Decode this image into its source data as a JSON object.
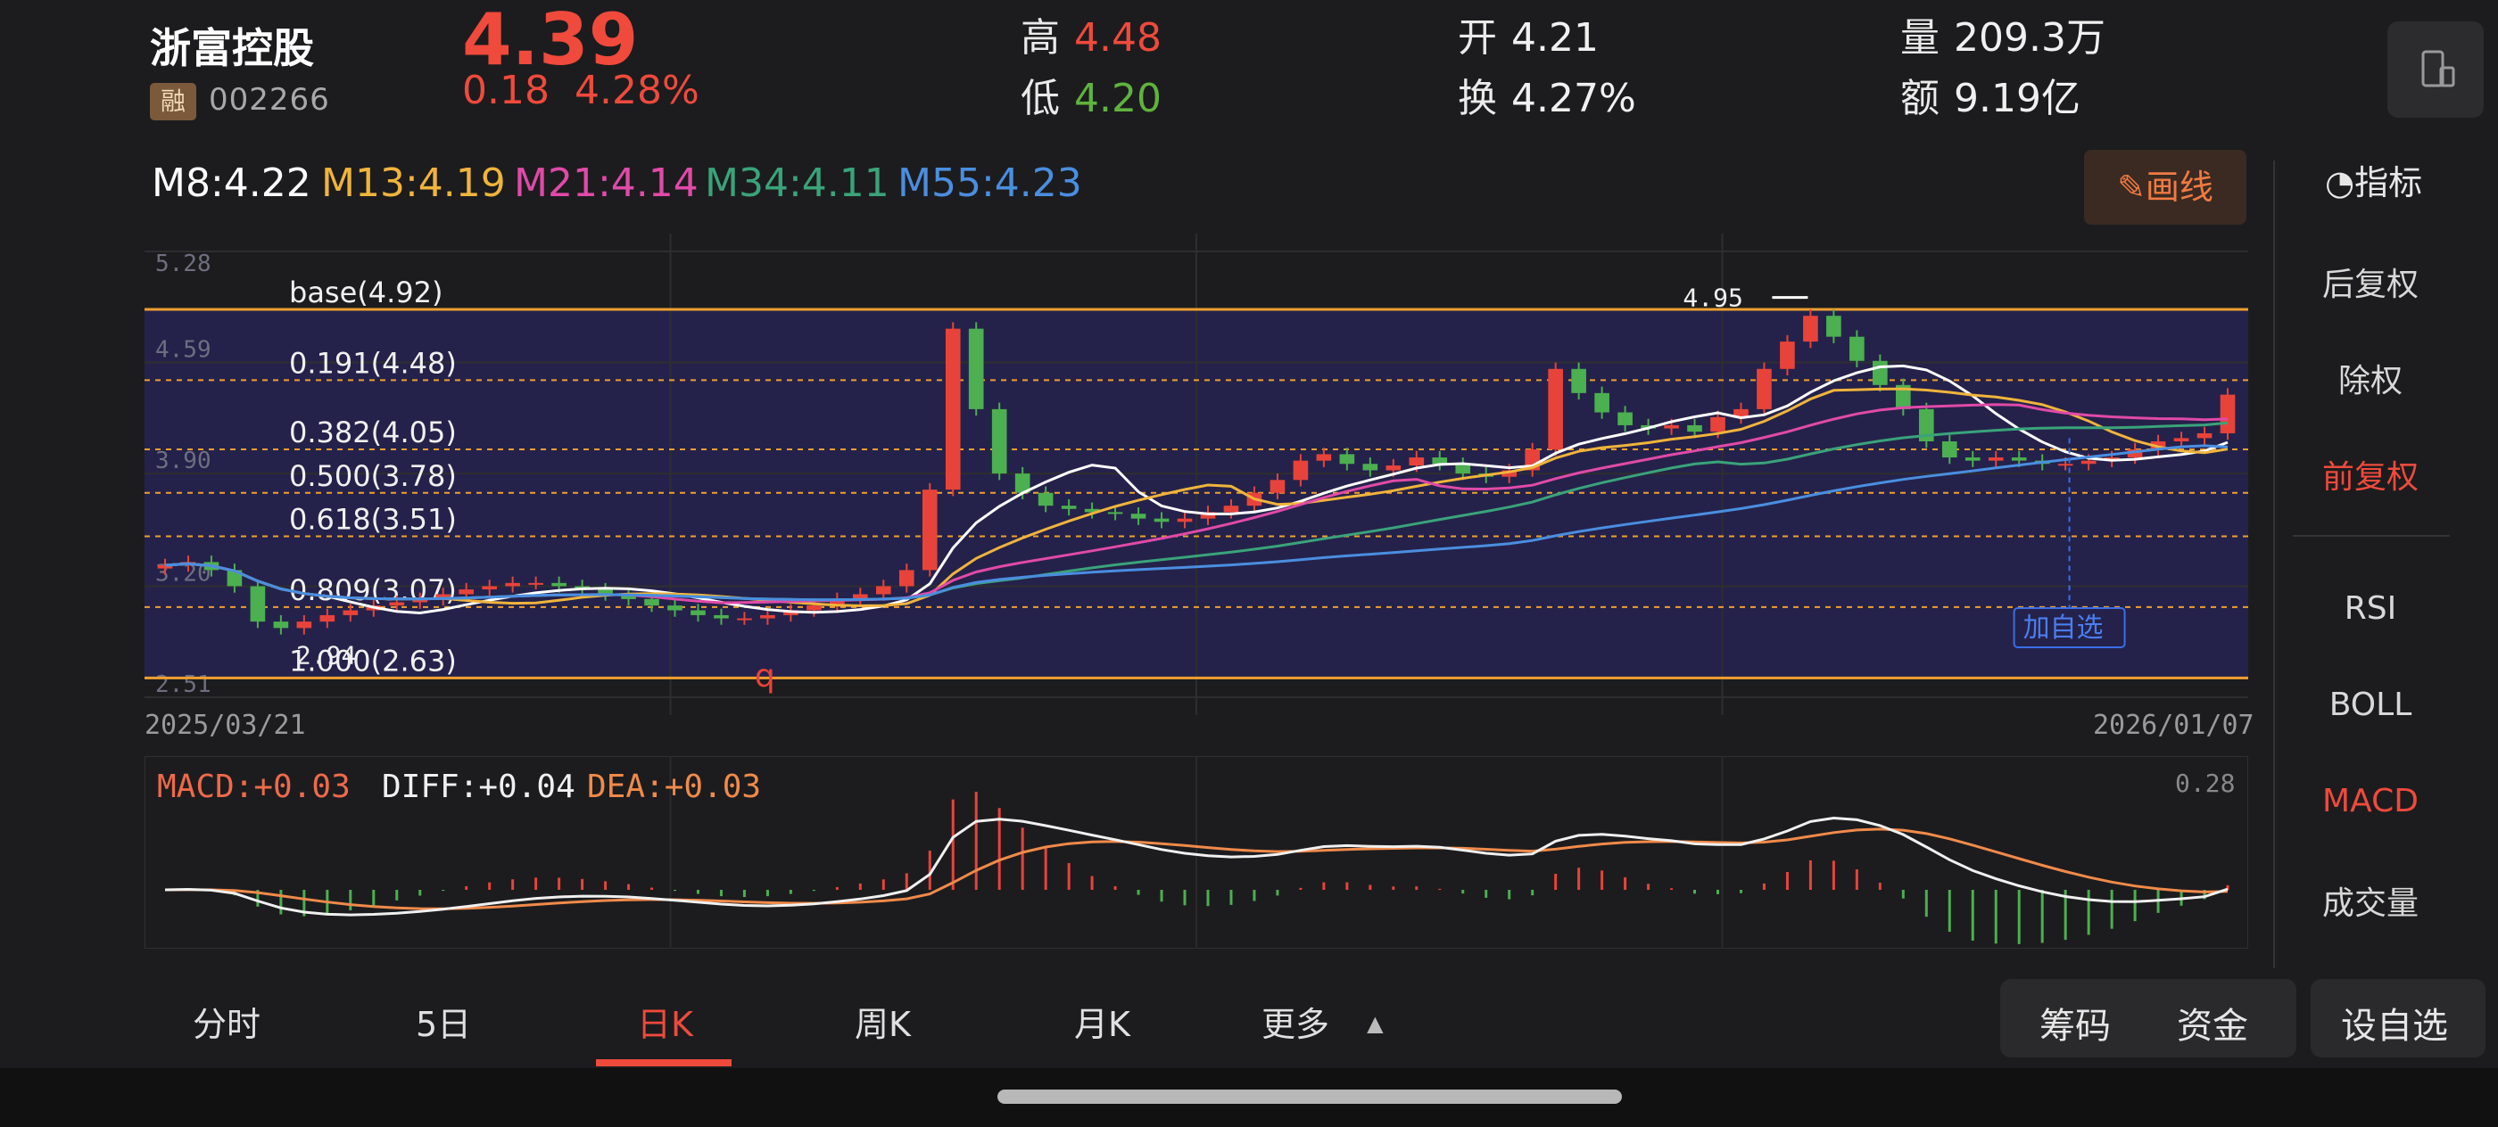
{
  "header": {
    "stock_name": "浙富控股",
    "rong_badge": "融",
    "stock_code": "002266",
    "price": "4.39",
    "change": "0.18",
    "change_pct": "4.28%",
    "high_label": "高",
    "high": "4.48",
    "low_label": "低",
    "low": "4.20",
    "open_label": "开",
    "open": "4.21",
    "turnover_label": "换",
    "turnover": "4.27%",
    "volume_label": "量",
    "volume": "209.3万",
    "amount_label": "额",
    "amount": "9.19亿",
    "phone_icon": "landscape-phone-icon"
  },
  "ma": {
    "m8": "M8:4.22",
    "m13": "M13:4.19",
    "m21": "M21:4.14",
    "m34": "M34:4.11",
    "m55": "M55:4.23",
    "colors": {
      "m8": "#ffffff",
      "m13": "#f0b43c",
      "m21": "#e04aa8",
      "m34": "#3aa37a",
      "m55": "#4a8ee0"
    }
  },
  "draw_button": {
    "icon": "pencil-icon",
    "label": "画线"
  },
  "side_panel": {
    "header_icon": "gauge-icon",
    "header": "指标",
    "adjust": [
      "后复权",
      "除权",
      "前复权"
    ],
    "adjust_active": "前复权",
    "indicators": [
      "RSI",
      "BOLL",
      "MACD",
      "成交量"
    ],
    "indicator_active": "MACD"
  },
  "chart_data": {
    "type": "candlestick",
    "y_ticks": [
      "5.28",
      "4.59",
      "3.90",
      "3.20",
      "2.51"
    ],
    "ylim": [
      2.51,
      5.28
    ],
    "date_start": "2025/03/21",
    "date_end": "2026/01/07",
    "fib_levels": [
      {
        "label": "base(4.92)",
        "value": 4.92
      },
      {
        "label": "0.191(4.48)",
        "value": 4.48
      },
      {
        "label": "0.382(4.05)",
        "value": 4.05
      },
      {
        "label": "0.500(3.78)",
        "value": 3.78
      },
      {
        "label": "0.618(3.51)",
        "value": 3.51
      },
      {
        "label": "0.809(3.07)",
        "value": 3.07
      },
      {
        "label": "1.000(2.63)",
        "value": 2.63
      }
    ],
    "high_marker": {
      "label": "4.95",
      "value": 4.95
    },
    "low_marker": {
      "label": "2.94",
      "value": 2.94
    },
    "q_marker": "q",
    "add_watch_tag": "加自选",
    "close_series": [
      3.33,
      3.35,
      3.3,
      3.2,
      2.98,
      2.94,
      2.98,
      3.02,
      3.05,
      3.08,
      3.1,
      3.12,
      3.15,
      3.18,
      3.2,
      3.22,
      3.22,
      3.2,
      3.18,
      3.15,
      3.12,
      3.08,
      3.05,
      3.02,
      3.0,
      3.0,
      3.02,
      3.05,
      3.08,
      3.12,
      3.15,
      3.2,
      3.3,
      3.8,
      4.8,
      4.3,
      3.9,
      3.78,
      3.7,
      3.68,
      3.66,
      3.65,
      3.62,
      3.6,
      3.62,
      3.66,
      3.7,
      3.78,
      3.86,
      3.98,
      4.02,
      3.96,
      3.92,
      3.95,
      4.0,
      3.96,
      3.9,
      3.88,
      3.92,
      4.05,
      4.55,
      4.4,
      4.28,
      4.2,
      4.18,
      4.2,
      4.16,
      4.25,
      4.3,
      4.55,
      4.72,
      4.88,
      4.75,
      4.6,
      4.45,
      4.3,
      4.1,
      4.0,
      3.98,
      4.0,
      3.98,
      3.96,
      3.96,
      3.98,
      4.0,
      4.05,
      4.1,
      4.12,
      4.15,
      4.39
    ],
    "macd_label": "MACD:+0.03",
    "diff_label": "DIFF:+0.04",
    "dea_label": "DEA:+0.03",
    "macd_max": "0.28"
  },
  "tabs": {
    "items": [
      "分时",
      "5日",
      "日K",
      "周K",
      "月K",
      "更多"
    ],
    "active": "日K",
    "more_icon": "triangle-up-icon",
    "chips": "筹码",
    "funds": "资金",
    "add_watch": "设自选"
  }
}
